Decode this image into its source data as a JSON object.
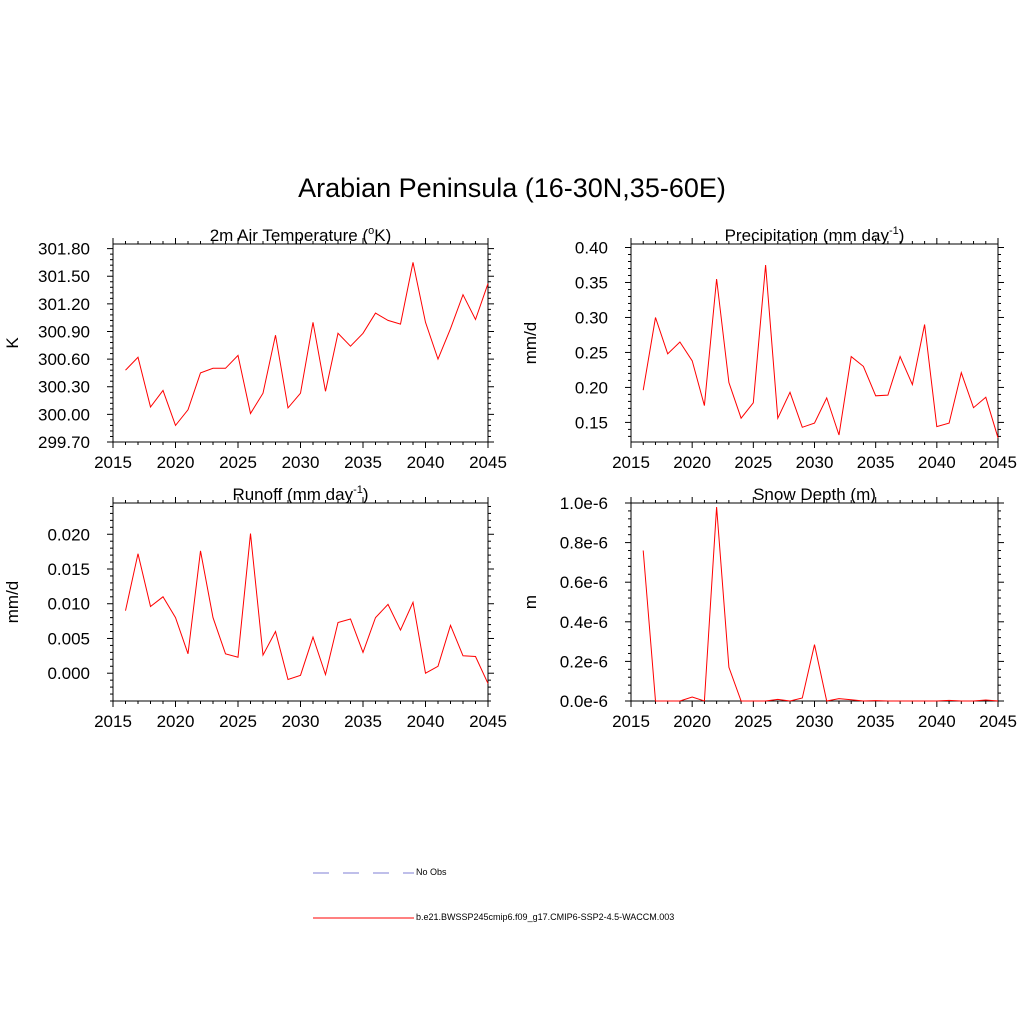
{
  "title": "Arabian Peninsula (16-30N,35-60E)",
  "legend": {
    "obs_label": "No Obs",
    "model_label": "b.e21.BWSSP245cmip6.f09_g17.CMIP6-SSP2-4.5-WACCM.003",
    "obs_color": "#9999dd",
    "model_color": "#ff0000"
  },
  "chart_data": [
    {
      "type": "line",
      "title": "2m Air Temperature (°K)",
      "title_main": "2m Air Temperature (",
      "title_sup": "o",
      "title_end": "K)",
      "ylabel": "K",
      "xlim": [
        2015,
        2045
      ],
      "ylim": [
        299.7,
        301.85
      ],
      "xticks": [
        "2015",
        "2020",
        "2025",
        "2030",
        "2035",
        "2040",
        "2045"
      ],
      "yticks": [
        "299.70",
        "300.00",
        "300.30",
        "300.60",
        "300.90",
        "301.20",
        "301.50",
        "301.80"
      ],
      "ytick_values": [
        299.7,
        300.0,
        300.3,
        300.6,
        300.9,
        301.2,
        301.5,
        301.8
      ],
      "series": [
        {
          "color": "#ff0000",
          "x": [
            2016,
            2017,
            2018,
            2019,
            2020,
            2021,
            2022,
            2023,
            2024,
            2025,
            2026,
            2027,
            2028,
            2029,
            2030,
            2031,
            2032,
            2033,
            2034,
            2035,
            2036,
            2037,
            2038,
            2039,
            2040,
            2041,
            2042,
            2043,
            2044,
            2045
          ],
          "values": [
            300.48,
            300.62,
            300.08,
            300.26,
            299.88,
            300.05,
            300.45,
            300.5,
            300.5,
            300.64,
            300.01,
            300.23,
            300.86,
            300.07,
            300.23,
            301.0,
            300.25,
            300.88,
            300.74,
            300.88,
            301.1,
            301.02,
            300.98,
            301.65,
            301.0,
            300.6,
            300.93,
            301.3,
            301.03,
            301.42
          ]
        }
      ]
    },
    {
      "type": "line",
      "title": "Precipitation (mm day-1)",
      "title_main": "Precipitation (mm day",
      "title_sup": "-1",
      "title_end": ")",
      "ylabel": "mm/d",
      "xlim": [
        2015,
        2045
      ],
      "ylim": [
        0.122,
        0.405
      ],
      "xticks": [
        "2015",
        "2020",
        "2025",
        "2030",
        "2035",
        "2040",
        "2045"
      ],
      "yticks": [
        "0.15",
        "0.20",
        "0.25",
        "0.30",
        "0.35",
        "0.40"
      ],
      "ytick_values": [
        0.15,
        0.2,
        0.25,
        0.3,
        0.35,
        0.4
      ],
      "series": [
        {
          "color": "#ff0000",
          "x": [
            2016,
            2017,
            2018,
            2019,
            2020,
            2021,
            2022,
            2023,
            2024,
            2025,
            2026,
            2027,
            2028,
            2029,
            2030,
            2031,
            2032,
            2033,
            2034,
            2035,
            2036,
            2037,
            2038,
            2039,
            2040,
            2041,
            2042,
            2043,
            2044,
            2045
          ],
          "values": [
            0.196,
            0.3,
            0.248,
            0.265,
            0.238,
            0.174,
            0.355,
            0.207,
            0.156,
            0.178,
            0.375,
            0.156,
            0.193,
            0.143,
            0.149,
            0.185,
            0.132,
            0.244,
            0.23,
            0.188,
            0.189,
            0.244,
            0.204,
            0.29,
            0.144,
            0.149,
            0.221,
            0.171,
            0.186,
            0.128
          ]
        }
      ]
    },
    {
      "type": "line",
      "title": "Runoff (mm day-1)",
      "title_main": "Runoff (mm day",
      "title_sup": "-1",
      "title_end": ")",
      "ylabel": "mm/d",
      "xlim": [
        2015,
        2045
      ],
      "ylim": [
        -0.004,
        0.0245
      ],
      "xticks": [
        "2015",
        "2020",
        "2025",
        "2030",
        "2035",
        "2040",
        "2045"
      ],
      "yticks": [
        "0.000",
        "0.005",
        "0.010",
        "0.015",
        "0.020"
      ],
      "ytick_values": [
        0.0,
        0.005,
        0.01,
        0.015,
        0.02
      ],
      "series": [
        {
          "color": "#ff0000",
          "x": [
            2016,
            2017,
            2018,
            2019,
            2020,
            2021,
            2022,
            2023,
            2024,
            2025,
            2026,
            2027,
            2028,
            2029,
            2030,
            2031,
            2032,
            2033,
            2034,
            2035,
            2036,
            2037,
            2038,
            2039,
            2040,
            2041,
            2042,
            2043,
            2044,
            2045
          ],
          "values": [
            0.009,
            0.0172,
            0.0096,
            0.011,
            0.008,
            0.0028,
            0.0176,
            0.008,
            0.0028,
            0.0023,
            0.0201,
            0.0026,
            0.006,
            -0.0009,
            -0.0003,
            0.0052,
            -0.0002,
            0.0073,
            0.0078,
            0.003,
            0.008,
            0.0099,
            0.0062,
            0.0102,
            0.0,
            0.001,
            0.0069,
            0.0025,
            0.0024,
            -0.0015
          ]
        }
      ]
    },
    {
      "type": "line",
      "title": "Snow Depth (m)",
      "title_main": "Snow Depth (m)",
      "title_sup": "",
      "title_end": "",
      "ylabel": "m",
      "xlim": [
        2015,
        2045
      ],
      "ylim": [
        0,
        1e-06
      ],
      "xticks": [
        "2015",
        "2020",
        "2025",
        "2030",
        "2035",
        "2040",
        "2045"
      ],
      "yticks": [
        "0.0e-6",
        "0.2e-6",
        "0.4e-6",
        "0.6e-6",
        "0.8e-6",
        "1.0e-6"
      ],
      "ytick_values": [
        0,
        2e-07,
        4e-07,
        6e-07,
        8e-07,
        1e-06
      ],
      "series": [
        {
          "color": "#ff0000",
          "x": [
            2016,
            2017,
            2018,
            2019,
            2020,
            2021,
            2022,
            2023,
            2024,
            2025,
            2026,
            2027,
            2028,
            2029,
            2030,
            2031,
            2032,
            2033,
            2034,
            2035,
            2036,
            2037,
            2038,
            2039,
            2040,
            2041,
            2042,
            2043,
            2044,
            2045
          ],
          "values": [
            7.6e-07,
            0,
            0,
            0,
            2e-08,
            0,
            9.8e-07,
            1.7e-07,
            0,
            0,
            0,
            8e-09,
            0,
            1.5e-08,
            2.85e-07,
            0,
            1.2e-08,
            6e-09,
            0,
            2e-09,
            0,
            0,
            0,
            0,
            0,
            3e-09,
            0,
            0,
            5e-09,
            0
          ]
        }
      ]
    }
  ]
}
